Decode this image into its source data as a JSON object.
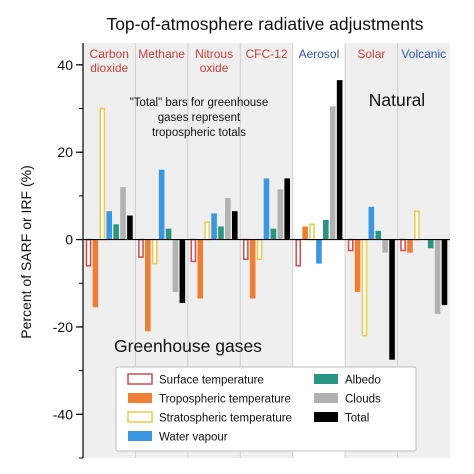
{
  "chart_data": {
    "type": "bar",
    "title": "Top-of-atmosphere radiative adjustments",
    "ylabel": "Percent of SARF or IRF (%)",
    "xlabel": "",
    "ylim": [
      -50,
      45
    ],
    "yticks": [
      -40,
      -20,
      0,
      20,
      40
    ],
    "grid": false,
    "legend_position": "bottom",
    "categories": [
      {
        "label": "Carbon\ndioxide",
        "color": "#c8413f",
        "shaded": true
      },
      {
        "label": "Methane",
        "color": "#c8413f",
        "shaded": true
      },
      {
        "label": "Nitrous\noxide",
        "color": "#c8413f",
        "shaded": true
      },
      {
        "label": "CFC-12",
        "color": "#c8413f",
        "shaded": true
      },
      {
        "label": "Aerosol",
        "color": "#2c55a6",
        "shaded": false
      },
      {
        "label": "Solar",
        "color": "#c8413f",
        "shaded": true
      },
      {
        "label": "Volcanic",
        "color": "#2c55a6",
        "shaded": true
      }
    ],
    "series": [
      {
        "name": "Surface temperature",
        "style": "outline",
        "color": "#d24a4a",
        "values": [
          -6,
          -4,
          -5,
          -4.5,
          -6,
          -2.5,
          -2.5
        ]
      },
      {
        "name": "Tropospheric temperature",
        "style": "fill",
        "color": "#ee8035",
        "values": [
          -15.5,
          -21,
          -13.5,
          -13.5,
          3,
          -12,
          -3
        ]
      },
      {
        "name": "Stratospheric temperature",
        "style": "outline",
        "color": "#edc94a",
        "values": [
          30,
          -5.5,
          4,
          -4.5,
          3.5,
          -22,
          6.5
        ]
      },
      {
        "name": "Water vapour",
        "style": "fill",
        "color": "#3a97e0",
        "values": [
          6.5,
          16,
          6,
          14,
          -5.5,
          7.5,
          0
        ]
      },
      {
        "name": "Albedo",
        "style": "fill",
        "color": "#2a9582",
        "values": [
          3.5,
          2.5,
          3,
          2.5,
          4.5,
          2,
          -2
        ]
      },
      {
        "name": "Clouds",
        "style": "fill",
        "color": "#b2b2b2",
        "values": [
          12,
          -12,
          9.5,
          11.5,
          30.5,
          -3,
          -17
        ]
      },
      {
        "name": "Total",
        "style": "fill",
        "color": "#000000",
        "values": [
          5.5,
          -14.5,
          6.5,
          14,
          36.5,
          -27.5,
          -15
        ]
      }
    ],
    "annotations": {
      "note": "\"Total\" bars for greenhouse\ngases represent\ntropospheric totals",
      "natural": "Natural",
      "greenhouse": "Greenhouse gases"
    }
  }
}
